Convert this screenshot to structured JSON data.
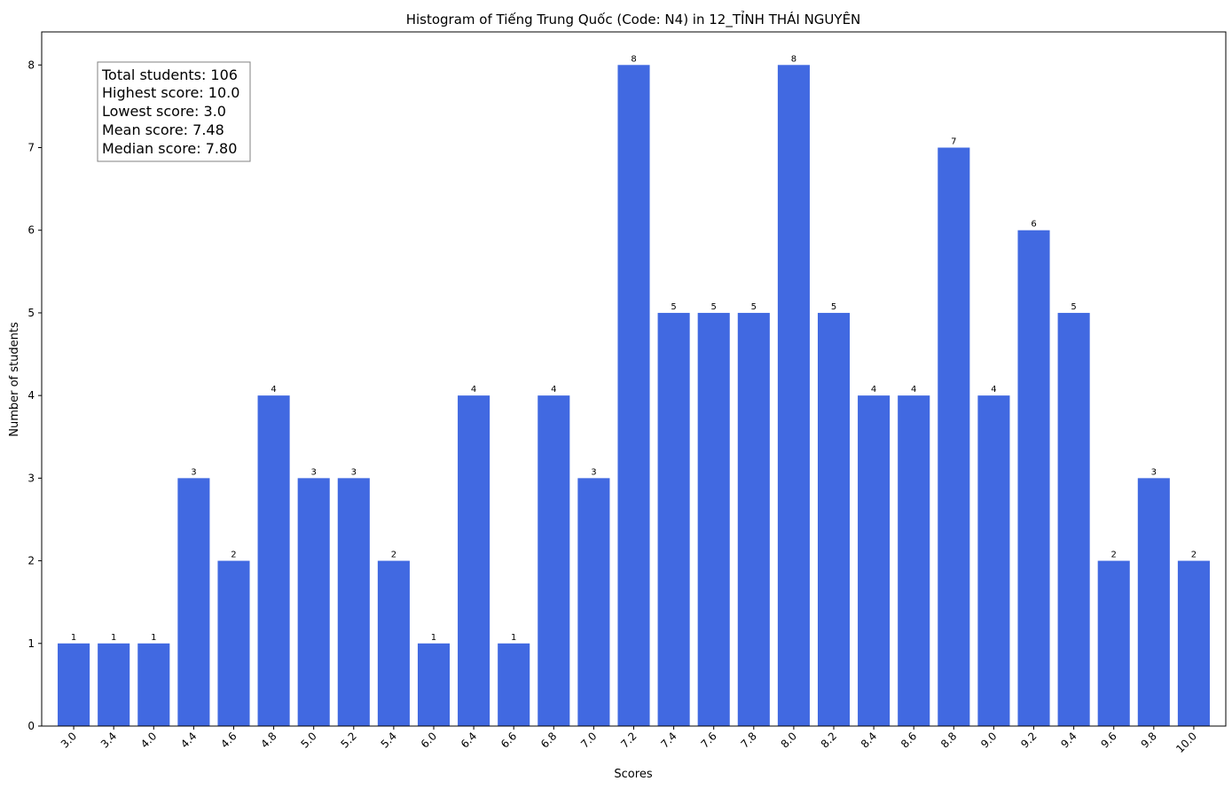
{
  "chart_data": {
    "type": "bar",
    "title": "Histogram of Tiếng Trung Quốc (Code: N4) in 12_TỈNH THÁI NGUYÊN",
    "xlabel": "Scores",
    "ylabel": "Number of students",
    "ylim": [
      0,
      8.4
    ],
    "yticks": [
      0,
      1,
      2,
      3,
      4,
      5,
      6,
      7,
      8
    ],
    "grid": false,
    "bar_color": "#4169e1",
    "categories": [
      "3.0",
      "3.4",
      "4.0",
      "4.4",
      "4.6",
      "4.8",
      "5.0",
      "5.2",
      "5.4",
      "6.0",
      "6.4",
      "6.6",
      "6.8",
      "7.0",
      "7.2",
      "7.4",
      "7.6",
      "7.8",
      "8.0",
      "8.2",
      "8.4",
      "8.6",
      "8.8",
      "9.0",
      "9.2",
      "9.4",
      "9.6",
      "9.8",
      "10.0"
    ],
    "values": [
      1,
      1,
      1,
      3,
      2,
      4,
      3,
      3,
      2,
      1,
      4,
      1,
      4,
      3,
      8,
      5,
      5,
      5,
      8,
      5,
      4,
      4,
      7,
      4,
      6,
      5,
      2,
      3,
      2
    ],
    "stats_box": [
      "Total students: 106",
      "Highest score: 10.0",
      "Lowest score: 3.0",
      "Mean score: 7.48",
      "Median score: 7.80"
    ]
  }
}
